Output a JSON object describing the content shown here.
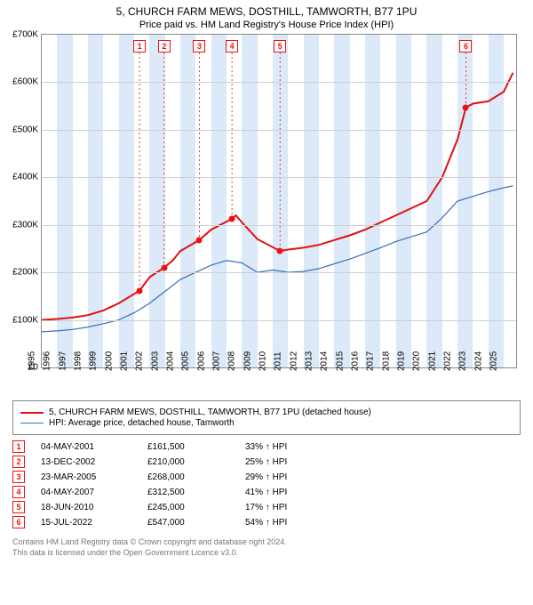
{
  "title": "5, CHURCH FARM MEWS, DOSTHILL, TAMWORTH, B77 1PU",
  "subtitle": "Price paid vs. HM Land Registry's House Price Index (HPI)",
  "chart": {
    "type": "line",
    "xlim": [
      1995,
      2025.8
    ],
    "ylim": [
      0,
      700000
    ],
    "ytick_step": 100000,
    "ytick_prefix": "£",
    "ytick_suffix": "K",
    "xticks": [
      1995,
      1996,
      1997,
      1998,
      1999,
      2000,
      2001,
      2002,
      2003,
      2004,
      2005,
      2006,
      2007,
      2008,
      2009,
      2010,
      2011,
      2012,
      2013,
      2014,
      2015,
      2016,
      2017,
      2018,
      2019,
      2020,
      2021,
      2022,
      2023,
      2024,
      2025
    ],
    "grid_color": "#d0d0d0",
    "border_color": "#888888",
    "background_color": "#ffffff",
    "band_color": "#dce9f8",
    "series": [
      {
        "name": "property",
        "label": "5, CHURCH FARM MEWS, DOSTHILL, TAMWORTH, B77 1PU (detached house)",
        "color": "#e01010",
        "width": 2,
        "data": [
          [
            1995,
            100000
          ],
          [
            1996,
            102000
          ],
          [
            1997,
            105000
          ],
          [
            1998,
            110000
          ],
          [
            1999,
            120000
          ],
          [
            2000,
            135000
          ],
          [
            2001.35,
            161500
          ],
          [
            2002,
            190000
          ],
          [
            2002.95,
            210000
          ],
          [
            2003.5,
            225000
          ],
          [
            2004,
            245000
          ],
          [
            2005.23,
            268000
          ],
          [
            2006,
            290000
          ],
          [
            2007.35,
            312500
          ],
          [
            2007.6,
            320000
          ],
          [
            2008,
            305000
          ],
          [
            2009,
            270000
          ],
          [
            2010.47,
            245000
          ],
          [
            2011,
            248000
          ],
          [
            2012,
            252000
          ],
          [
            2013,
            258000
          ],
          [
            2014,
            268000
          ],
          [
            2015,
            278000
          ],
          [
            2016,
            290000
          ],
          [
            2017,
            305000
          ],
          [
            2018,
            320000
          ],
          [
            2019,
            335000
          ],
          [
            2020,
            350000
          ],
          [
            2021,
            400000
          ],
          [
            2022.0,
            480000
          ],
          [
            2022.54,
            547000
          ],
          [
            2023,
            555000
          ],
          [
            2024,
            560000
          ],
          [
            2025,
            580000
          ],
          [
            2025.6,
            620000
          ]
        ]
      },
      {
        "name": "hpi",
        "label": "HPI: Average price, detached house, Tamworth",
        "color": "#3b6fb5",
        "width": 1.2,
        "data": [
          [
            1995,
            75000
          ],
          [
            1996,
            77000
          ],
          [
            1997,
            80000
          ],
          [
            1998,
            85000
          ],
          [
            1999,
            92000
          ],
          [
            2000,
            100000
          ],
          [
            2001,
            115000
          ],
          [
            2002,
            135000
          ],
          [
            2003,
            160000
          ],
          [
            2004,
            185000
          ],
          [
            2005,
            200000
          ],
          [
            2006,
            215000
          ],
          [
            2007,
            225000
          ],
          [
            2008,
            220000
          ],
          [
            2009,
            200000
          ],
          [
            2010,
            205000
          ],
          [
            2011,
            200000
          ],
          [
            2012,
            202000
          ],
          [
            2013,
            208000
          ],
          [
            2014,
            218000
          ],
          [
            2015,
            228000
          ],
          [
            2016,
            240000
          ],
          [
            2017,
            252000
          ],
          [
            2018,
            265000
          ],
          [
            2019,
            275000
          ],
          [
            2020,
            285000
          ],
          [
            2021,
            315000
          ],
          [
            2022,
            350000
          ],
          [
            2023,
            360000
          ],
          [
            2024,
            370000
          ],
          [
            2025,
            378000
          ],
          [
            2025.6,
            382000
          ]
        ]
      }
    ],
    "sales_markers": [
      {
        "n": "1",
        "x": 2001.35,
        "y": 161500
      },
      {
        "n": "2",
        "x": 2002.95,
        "y": 210000
      },
      {
        "n": "3",
        "x": 2005.23,
        "y": 268000
      },
      {
        "n": "4",
        "x": 2007.35,
        "y": 312500
      },
      {
        "n": "5",
        "x": 2010.47,
        "y": 245000
      },
      {
        "n": "6",
        "x": 2022.54,
        "y": 547000
      }
    ]
  },
  "legend": {
    "items": [
      {
        "color": "#e01010",
        "width": 2,
        "label": "5, CHURCH FARM MEWS, DOSTHILL, TAMWORTH, B77 1PU (detached house)"
      },
      {
        "color": "#3b6fb5",
        "width": 1.2,
        "label": "HPI: Average price, detached house, Tamworth"
      }
    ]
  },
  "sales_table": {
    "rows": [
      {
        "n": "1",
        "date": "04-MAY-2001",
        "price": "£161,500",
        "pct": "33% ↑ HPI"
      },
      {
        "n": "2",
        "date": "13-DEC-2002",
        "price": "£210,000",
        "pct": "25% ↑ HPI"
      },
      {
        "n": "3",
        "date": "23-MAR-2005",
        "price": "£268,000",
        "pct": "29% ↑ HPI"
      },
      {
        "n": "4",
        "date": "04-MAY-2007",
        "price": "£312,500",
        "pct": "41% ↑ HPI"
      },
      {
        "n": "5",
        "date": "18-JUN-2010",
        "price": "£245,000",
        "pct": "17% ↑ HPI"
      },
      {
        "n": "6",
        "date": "15-JUL-2022",
        "price": "£547,000",
        "pct": "54% ↑ HPI"
      }
    ]
  },
  "footer": {
    "line1": "Contains HM Land Registry data © Crown copyright and database right 2024.",
    "line2": "This data is licensed under the Open Government Licence v3.0."
  }
}
